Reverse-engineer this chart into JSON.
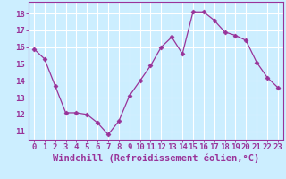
{
  "x": [
    0,
    1,
    2,
    3,
    4,
    5,
    6,
    7,
    8,
    9,
    10,
    11,
    12,
    13,
    14,
    15,
    16,
    17,
    18,
    19,
    20,
    21,
    22,
    23
  ],
  "y": [
    15.9,
    15.3,
    13.7,
    12.1,
    12.1,
    12.0,
    11.5,
    10.8,
    11.6,
    13.1,
    14.0,
    14.9,
    16.0,
    16.6,
    15.6,
    18.1,
    18.1,
    17.6,
    16.9,
    16.7,
    16.4,
    15.1,
    14.2,
    13.6
  ],
  "line_color": "#993399",
  "marker": "D",
  "marker_size": 2.5,
  "bg_color": "#cceeff",
  "grid_color": "#ffffff",
  "xlabel": "Windchill (Refroidissement éolien,°C)",
  "ylabel_ticks": [
    11,
    12,
    13,
    14,
    15,
    16,
    17,
    18
  ],
  "xtick_labels": [
    "0",
    "1",
    "2",
    "3",
    "4",
    "5",
    "6",
    "7",
    "8",
    "9",
    "10",
    "11",
    "12",
    "13",
    "14",
    "15",
    "16",
    "17",
    "18",
    "19",
    "20",
    "21",
    "22",
    "23"
  ],
  "ylim": [
    10.5,
    18.7
  ],
  "xlim": [
    -0.5,
    23.5
  ],
  "tick_fontsize": 6.5,
  "xlabel_fontsize": 7.5,
  "spine_color": "#993399"
}
